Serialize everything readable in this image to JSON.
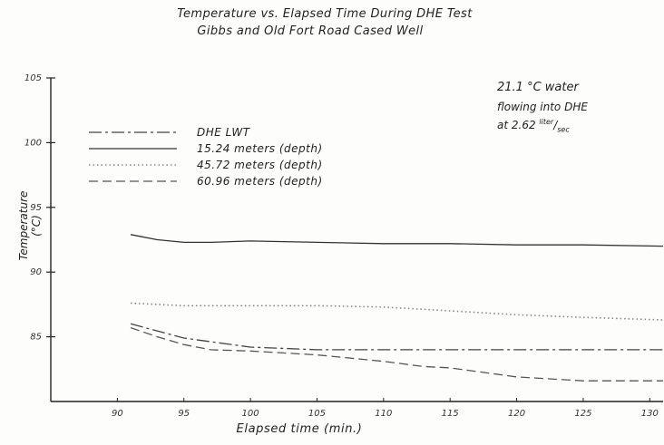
{
  "chart_data": {
    "type": "line",
    "title": "Temperature vs. Elapsed Time During DHE Test",
    "subtitle": "Gibbs and Old Fort Road Cased Well",
    "xlabel": "Elapsed time (min.)",
    "ylabel": "Temperature (°C)",
    "xlim": [
      85,
      131
    ],
    "ylim": [
      80,
      105
    ],
    "xticks": [
      90,
      95,
      100,
      105,
      110,
      115,
      120,
      125,
      130
    ],
    "yticks": [
      85,
      90,
      95,
      100,
      105
    ],
    "grid": false,
    "legend_position": "upper-left",
    "annotation": {
      "line1": "21.1 °C water",
      "line2": "flowing into DHE",
      "line3_prefix": "at 2.62",
      "line3_unit_top": "liter",
      "line3_unit_bottom": "sec"
    },
    "series": [
      {
        "name": "DHE LWT",
        "style": "dashdot",
        "color": "#444444",
        "x": [
          91,
          95,
          100,
          105,
          110,
          115,
          120,
          125,
          131
        ],
        "y": [
          86.0,
          84.9,
          84.2,
          84.0,
          84.0,
          84.0,
          84.0,
          84.0,
          84.0
        ]
      },
      {
        "name": "15.24 meters (depth)",
        "style": "solid",
        "color": "#333333",
        "x": [
          91,
          93,
          95,
          97,
          100,
          105,
          110,
          115,
          120,
          125,
          131
        ],
        "y": [
          92.9,
          92.5,
          92.3,
          92.3,
          92.4,
          92.3,
          92.2,
          92.2,
          92.1,
          92.1,
          92.0
        ]
      },
      {
        "name": "45.72 meters (depth)",
        "style": "dotted",
        "color": "#888888",
        "x": [
          91,
          95,
          100,
          105,
          110,
          115,
          120,
          125,
          131
        ],
        "y": [
          87.6,
          87.4,
          87.4,
          87.4,
          87.3,
          87.0,
          86.7,
          86.5,
          86.3
        ]
      },
      {
        "name": "60.96 meters (depth)",
        "style": "dashed",
        "color": "#555555",
        "x": [
          91,
          93,
          95,
          97,
          100,
          105,
          110,
          113,
          115,
          120,
          125,
          131
        ],
        "y": [
          85.7,
          85.0,
          84.4,
          84.0,
          83.9,
          83.6,
          83.1,
          82.7,
          82.6,
          81.9,
          81.6,
          81.6
        ]
      }
    ]
  }
}
